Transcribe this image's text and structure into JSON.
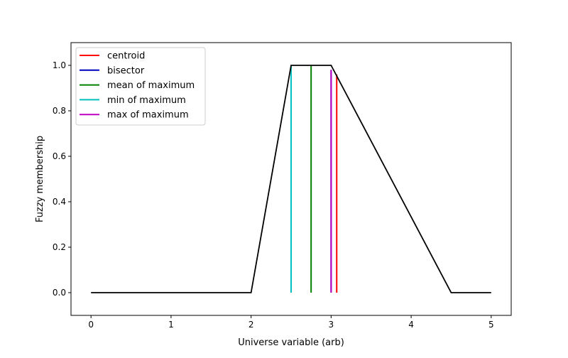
{
  "chart_data": {
    "type": "line",
    "xlabel": "Universe variable (arb)",
    "ylabel": "Fuzzy membership",
    "xlim": [
      -0.25,
      5.25
    ],
    "ylim": [
      -0.1,
      1.1
    ],
    "xticks": [
      0,
      1,
      2,
      3,
      4,
      5
    ],
    "yticks": [
      0.0,
      0.2,
      0.4,
      0.6,
      0.8,
      1.0
    ],
    "x_tick_labels": [
      "0",
      "1",
      "2",
      "3",
      "4",
      "5"
    ],
    "y_tick_labels": [
      "0.0",
      "0.2",
      "0.4",
      "0.6",
      "0.8",
      "1.0"
    ],
    "grid": false,
    "legend_position": "upper-left",
    "membership": {
      "color": "#000000",
      "x": [
        0,
        2,
        2.5,
        3,
        4.5,
        5
      ],
      "y": [
        0,
        0,
        1,
        1,
        0,
        0
      ]
    },
    "series": [
      {
        "name": "centroid",
        "color": "#ff0000",
        "x": 3.07,
        "y": [
          0,
          0.96
        ]
      },
      {
        "name": "bisector",
        "color": "#0000bf",
        "x": 3.0,
        "y": [
          0,
          0.98
        ]
      },
      {
        "name": "mean of maximum",
        "color": "#008000",
        "x": 2.75,
        "y": [
          0,
          1.0
        ]
      },
      {
        "name": "min of maximum",
        "color": "#00bfbf",
        "x": 2.5,
        "y": [
          0,
          1.0
        ]
      },
      {
        "name": "max of maximum",
        "color": "#bf00bf",
        "x": 3.0,
        "y": [
          0,
          0.98
        ]
      }
    ]
  }
}
